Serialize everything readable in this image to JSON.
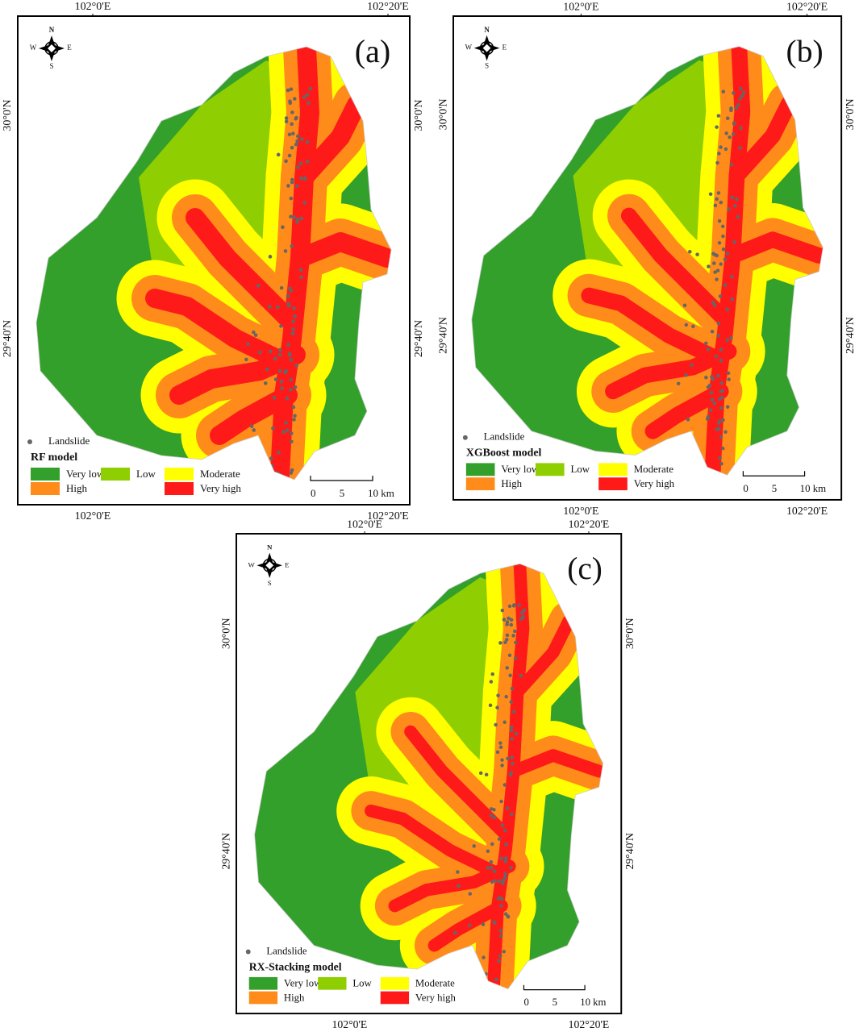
{
  "panels": [
    {
      "label": "(a)",
      "model": "RF model"
    },
    {
      "label": "(b)",
      "model": "XGBoost model"
    },
    {
      "label": "(c)",
      "model": "RX-Stacking model"
    }
  ],
  "graticule": {
    "lon": [
      "102°0'E",
      "102°20'E"
    ],
    "lat": [
      "30°0'N",
      "29°40'N"
    ]
  },
  "compass": {
    "n": "N",
    "e": "E",
    "s": "S",
    "w": "W"
  },
  "legend": {
    "landslide": "Landslide",
    "classes": [
      {
        "name": "Very low",
        "color": "#33a02c"
      },
      {
        "name": "Low",
        "color": "#8fce00"
      },
      {
        "name": "Moderate",
        "color": "#ffff00"
      },
      {
        "name": "High",
        "color": "#ff8c1a"
      },
      {
        "name": "Very high",
        "color": "#ff1a1a"
      }
    ]
  },
  "scale_bar": [
    "0",
    "5",
    "10 km"
  ]
}
